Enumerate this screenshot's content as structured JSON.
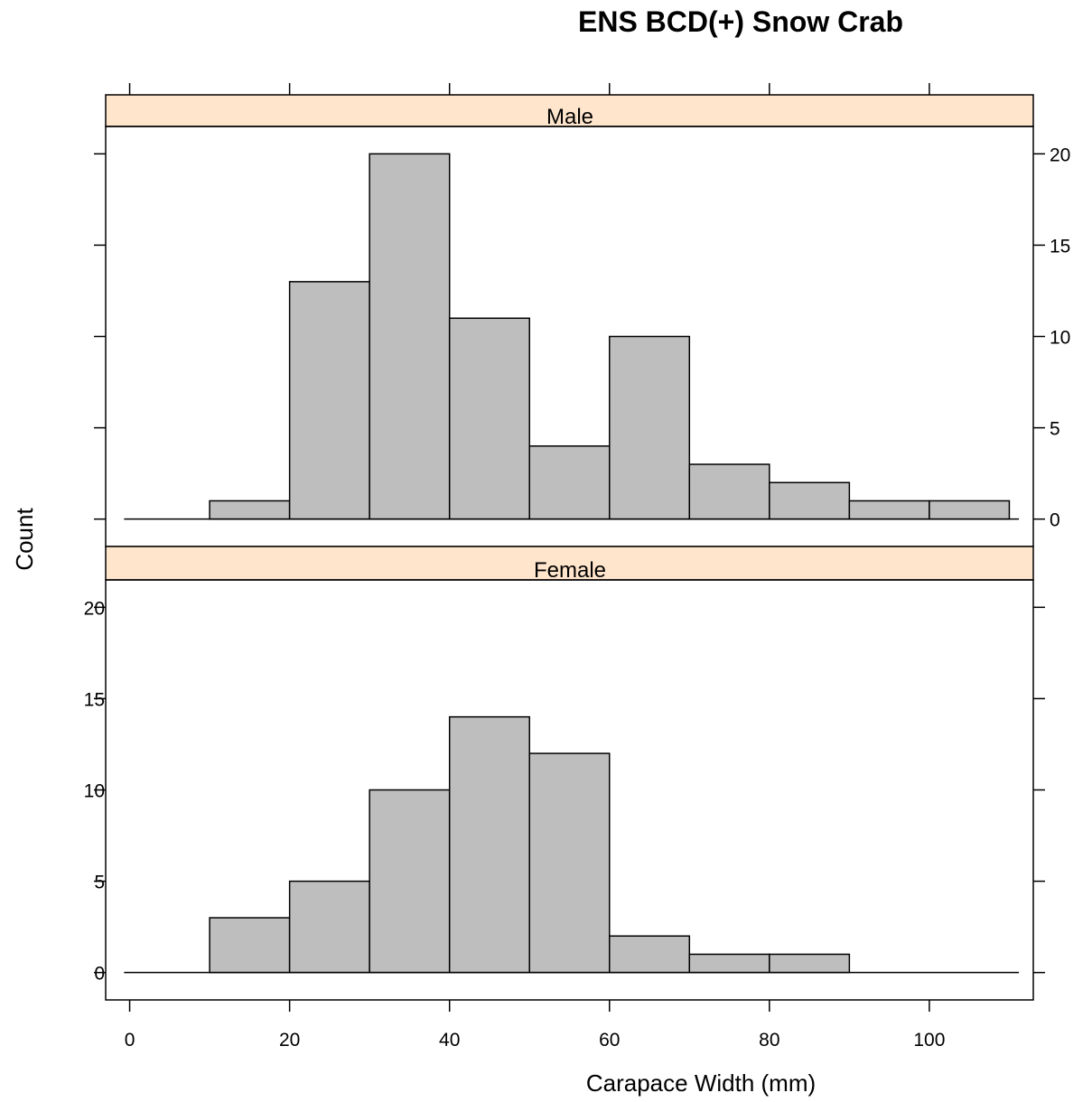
{
  "chart_data": {
    "type": "bar",
    "title": "ENS BCD(+) Snow Crab",
    "xlabel": "Carapace Width (mm)",
    "ylabel": "Count",
    "xlim": [
      -3,
      113
    ],
    "ylim": [
      -1.5,
      21.5
    ],
    "x_ticks": [
      "0",
      "20",
      "40",
      "60",
      "80",
      "100"
    ],
    "y_ticks": [
      "0",
      "5",
      "10",
      "15",
      "20"
    ],
    "bin_edges": [
      0,
      10,
      20,
      30,
      40,
      50,
      60,
      70,
      80,
      90,
      100,
      110
    ],
    "bar_color": "#bebebe",
    "strip_color": "#ffe5cc",
    "panels": [
      {
        "name": "Male",
        "values": [
          0,
          1,
          13,
          20,
          11,
          4,
          10,
          3,
          2,
          1,
          1
        ]
      },
      {
        "name": "Female",
        "values": [
          0,
          3,
          5,
          10,
          14,
          12,
          2,
          1,
          1,
          0,
          0
        ]
      }
    ]
  }
}
